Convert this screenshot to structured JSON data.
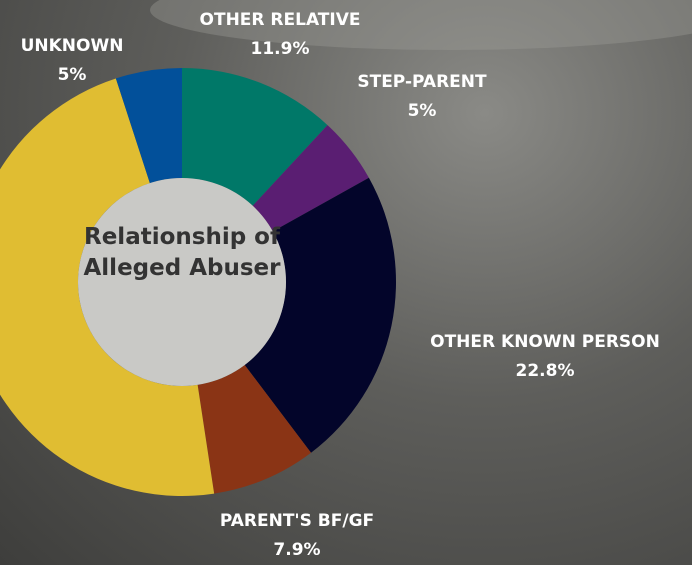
{
  "chart_data": {
    "type": "pie",
    "title": "Relationship of Alleged Abuser",
    "categories": [
      "OTHER RELATIVE",
      "STEP-PARENT",
      "OTHER KNOWN PERSON",
      "PARENT'S BF/GF",
      null,
      "UNKNOWN"
    ],
    "values": [
      11.9,
      5,
      22.8,
      7.9,
      47.4,
      5
    ],
    "value_labels": [
      "11.9%",
      "5%",
      "22.8%",
      "7.9%",
      null,
      "5%"
    ],
    "colors": [
      "#007868",
      "#5a1e72",
      "#03052a",
      "#8a3415",
      "#e0bd32",
      "#02509a"
    ],
    "donut": true
  }
}
